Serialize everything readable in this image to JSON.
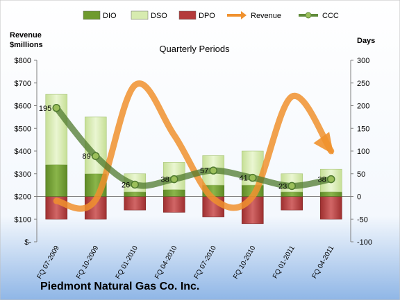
{
  "company": "Piedmont Natural Gas Co. Inc.",
  "left_axis_title": "Revenue\n$millions",
  "right_axis_title": "Days",
  "subtitle": "Quarterly Periods",
  "legend": [
    {
      "name": "DIO",
      "color": "#6f9a2e"
    },
    {
      "name": "DSO",
      "color": "#d7ebb0"
    },
    {
      "name": "DPO",
      "color": "#b43a3a"
    },
    {
      "name": "Revenue",
      "color": "#f0912e"
    },
    {
      "name": "CCC",
      "color": "#5f8a3a"
    }
  ],
  "chart_data": {
    "type": "bar",
    "categories": [
      "FQ 07-2009",
      "FQ 10-2009",
      "FQ 01-2010",
      "FQ 04-2010",
      "FQ 07-2010",
      "FQ 10-2010",
      "FQ 01-2011",
      "FQ 04-2011"
    ],
    "left_axis": {
      "min": 0,
      "max": 800,
      "ticks": [
        "$-",
        "$100",
        "$200",
        "$300",
        "$400",
        "$500",
        "$600",
        "$700",
        "$800"
      ]
    },
    "right_axis": {
      "min": -100,
      "max": 300,
      "ticks": [
        "-100",
        "-50",
        "0",
        "50",
        "100",
        "150",
        "200",
        "250",
        "300"
      ]
    },
    "series": [
      {
        "name": "DIO",
        "axis": "right",
        "values": [
          70,
          50,
          10,
          15,
          25,
          25,
          10,
          10
        ]
      },
      {
        "name": "DSO",
        "axis": "right",
        "values": [
          155,
          125,
          40,
          60,
          65,
          75,
          40,
          50
        ]
      },
      {
        "name": "DPO",
        "axis": "right",
        "values": [
          -50,
          -50,
          -30,
          -35,
          -45,
          -60,
          -30,
          -50
        ]
      },
      {
        "name": "Revenue",
        "axis": "left",
        "values": [
          180,
          185,
          690,
          470,
          190,
          200,
          640,
          400
        ]
      },
      {
        "name": "CCC",
        "axis": "right",
        "values": [
          195,
          89,
          26,
          38,
          57,
          41,
          23,
          38
        ]
      }
    ],
    "ccc_labels": [
      "195",
      "89",
      "26",
      "38",
      "57",
      "41",
      "23",
      "38"
    ],
    "grid": false,
    "legend_position": "top"
  }
}
